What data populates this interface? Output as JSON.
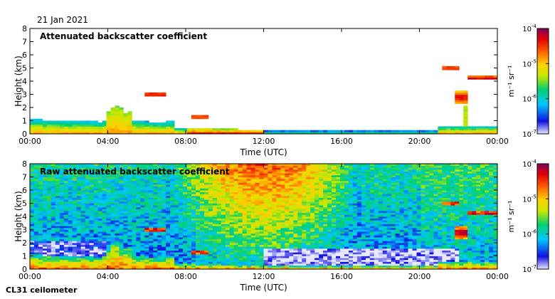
{
  "date": "21 Jan 2021",
  "instrument": "CL31 ceilometer",
  "colors": {
    "colormap": [
      "#e8e8ff",
      "#1010e0",
      "#00c8ff",
      "#00d070",
      "#c8e800",
      "#ffd000",
      "#ff6000",
      "#e00000",
      "#800060"
    ]
  },
  "chart_data": [
    {
      "type": "heatmap",
      "title": "Attenuated backscatter coefficient",
      "xlabel": "Time (UTC)",
      "ylabel": "Height (km)",
      "xlim": [
        0,
        24
      ],
      "ylim": [
        0,
        8
      ],
      "xticks": [
        "00:00",
        "04:00",
        "08:00",
        "12:00",
        "16:00",
        "20:00",
        "00:00"
      ],
      "yticks": [
        "0",
        "1",
        "2",
        "3",
        "4",
        "5",
        "6",
        "7",
        "8"
      ],
      "colorbar": {
        "scale": "log",
        "range": [
          1e-07,
          0.0001
        ],
        "ticks": [
          "10^-7",
          "10^-6",
          "10^-5",
          "10^-4"
        ],
        "unit_label": "m⁻¹ sr⁻¹"
      },
      "features": [
        {
          "name": "boundary layer",
          "hours": [
            0,
            24
          ],
          "top_km": 1.0,
          "range": "10^-6 to 10^-5"
        },
        {
          "name": "convective aerosol plume",
          "hours": [
            3.9,
            5.2
          ],
          "top_km": 2.0
        },
        {
          "name": "cloud layer",
          "hours": [
            5.8,
            7.0
          ],
          "height_km": 3.0
        },
        {
          "name": "cloud layer",
          "hours": [
            21.2,
            22.0
          ],
          "height_km": 5.0
        },
        {
          "name": "cloud layer",
          "hours": [
            22.5,
            24.0
          ],
          "height_km": 4.3
        }
      ]
    },
    {
      "type": "heatmap",
      "title": "Raw attenuated backscatter coefficient",
      "xlabel": "Time (UTC)",
      "ylabel": "Height (km)",
      "xlim": [
        0,
        24
      ],
      "ylim": [
        0,
        8
      ],
      "xticks": [
        "00:00",
        "04:00",
        "08:00",
        "12:00",
        "16:00",
        "20:00",
        "00:00"
      ],
      "yticks": [
        "0",
        "1",
        "2",
        "3",
        "4",
        "5",
        "6",
        "7",
        "8"
      ],
      "colorbar": {
        "scale": "log",
        "range": [
          1e-07,
          0.0001
        ],
        "ticks": [
          "10^-7",
          "10^-6",
          "10^-5",
          "10^-4"
        ],
        "unit_label": "m⁻¹ sr⁻¹"
      },
      "features": [
        {
          "name": "daytime noise (solar background)",
          "hours": [
            8,
            16
          ],
          "height_km": [
            3,
            8
          ]
        },
        {
          "name": "low-noise region",
          "hours": [
            12,
            22
          ],
          "height_km": [
            0.2,
            1.5
          ]
        },
        {
          "name": "boundary layer",
          "hours": [
            0,
            24
          ],
          "top_km": 1.0
        }
      ]
    }
  ]
}
